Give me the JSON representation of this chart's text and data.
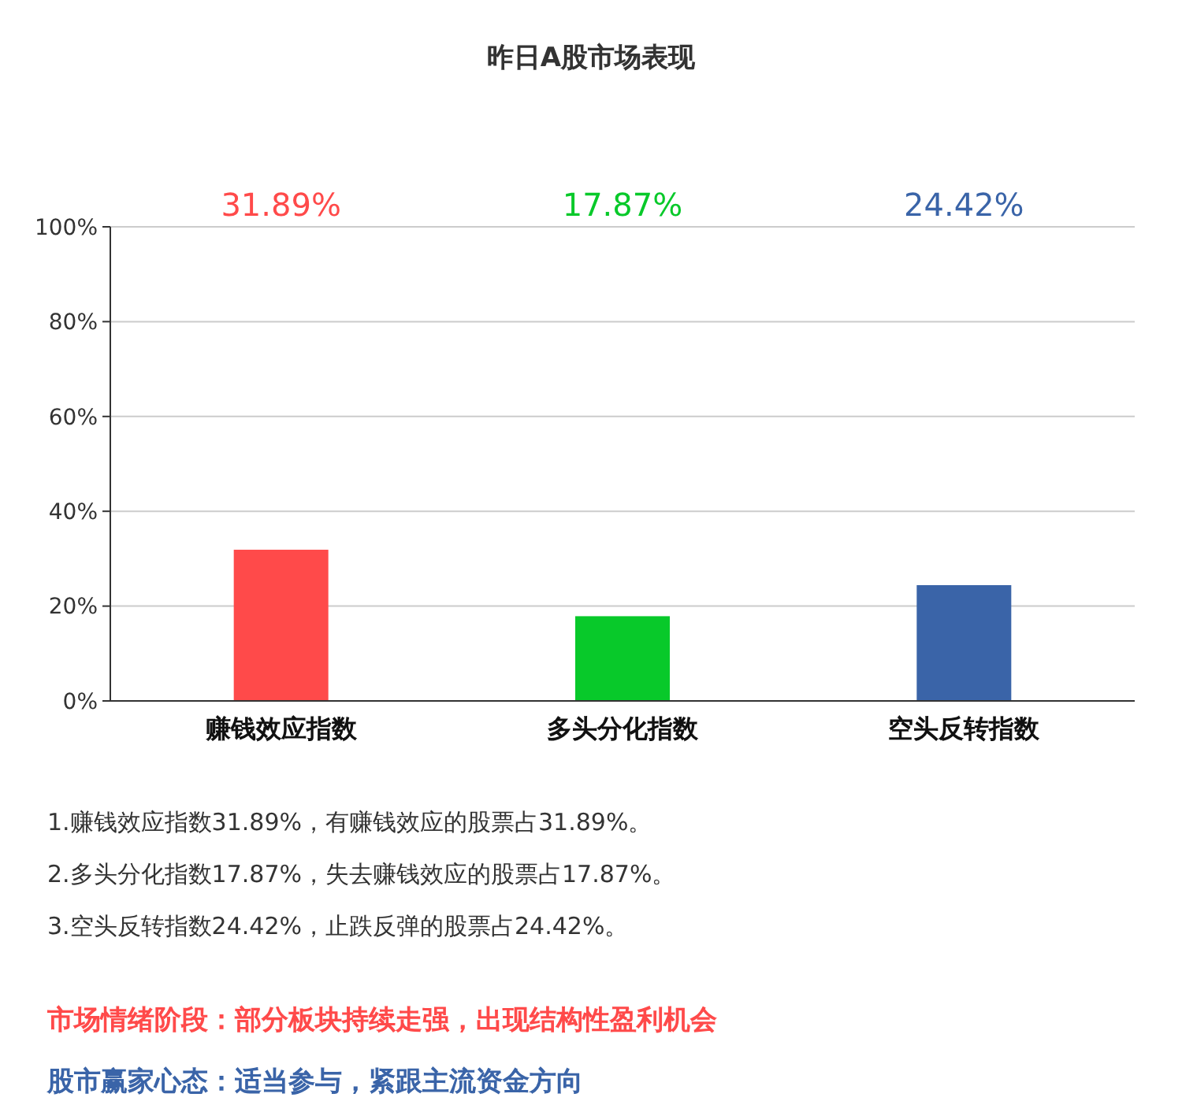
{
  "chart_data": {
    "type": "bar",
    "title": "昨日A股市场表现",
    "categories": [
      "赚钱效应指数",
      "多头分化指数",
      "空头反转指数"
    ],
    "values": [
      31.89,
      17.87,
      24.42
    ],
    "colors": [
      "#ff4a4a",
      "#08c92a",
      "#3a64a8"
    ],
    "ylim": [
      0,
      100
    ],
    "yticks": [
      {
        "value": 0,
        "label": "0%"
      },
      {
        "value": 20,
        "label": "20%"
      },
      {
        "value": 40,
        "label": "40%"
      },
      {
        "value": 60,
        "label": "60%"
      },
      {
        "value": 80,
        "label": "80%"
      },
      {
        "value": 100,
        "label": "100%"
      }
    ],
    "grid": "y",
    "annotations": [
      "31.89%",
      "17.87%",
      "24.42%",
      "1.赚钱效应指数31.89%，有赚钱效应的股票占31.89%。",
      "2.多头分化指数17.87%，失去赚钱效应的股票占17.87%。",
      "3.空头反转指数24.42%，止跌反弹的股票占24.42%。",
      "市场情绪阶段：部分板块持续走强，出现结构性盈利机会",
      "股市赢家心态：适当参与，紧跟主流资金方向"
    ]
  }
}
